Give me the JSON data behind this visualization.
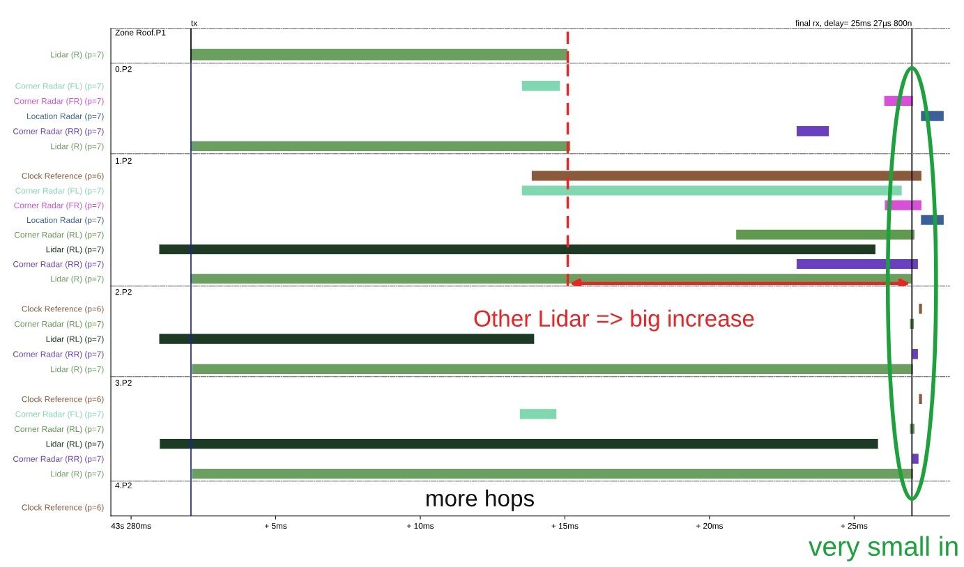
{
  "chart_data": [
    {
      "type": "bar",
      "orientation": "horizontal",
      "title": "Zone Roof.P1",
      "tick_labels": "y",
      "categories": [
        "Lidar (R) (p=7)"
      ],
      "base": [
        2.07
      ],
      "values": [
        13.0
      ],
      "colors": [
        "#6a9f60"
      ],
      "xlim": [
        -0.7,
        28.3
      ],
      "ref_lines": [
        {
          "axis": "x",
          "value": 2.07,
          "label": "tx",
          "color": "#000000",
          "line_style": "solid"
        },
        {
          "axis": "x",
          "value": 27.0,
          "label": "final rx, delay= 25ms 27µs 800n",
          "color": "#000000",
          "line_style": "solid"
        },
        {
          "axis": "x",
          "value": 15.1,
          "color": "#ee2222",
          "line_style": "dashed"
        }
      ]
    },
    {
      "type": "bar",
      "orientation": "horizontal",
      "title": "0.P2",
      "tick_labels": "y",
      "categories": [
        "Corner Radar (FL) (p=7)",
        "Corner Radar (FR) (p=7)",
        "Location Radar (p=7)",
        "Corner Radar (RR) (p=7)",
        "Lidar (R) (p=7)"
      ],
      "base": [
        13.53,
        26.06,
        27.33,
        23.03,
        2.07
      ],
      "values": [
        1.28,
        0.96,
        0.75,
        1.08,
        13.1
      ],
      "colors": [
        "#7fd8b0",
        "#d84fd8",
        "#3a5f9a",
        "#6a3fc0",
        "#6a9f60"
      ],
      "xlim": [
        -0.7,
        28.3
      ],
      "ref_lines": [
        {
          "axis": "x",
          "value": 2.07,
          "color": "#1a1acc",
          "line_style": "solid"
        },
        {
          "axis": "x",
          "value": 27.0,
          "color": "#000000",
          "line_style": "solid"
        },
        {
          "axis": "x",
          "value": 15.1,
          "color": "#ee2222",
          "line_style": "dashed"
        }
      ]
    },
    {
      "type": "bar",
      "orientation": "horizontal",
      "title": "1.P2",
      "tick_labels": "y",
      "categories": [
        "Clock Reference (p=6)",
        "Corner Radar (FL) (p=7)",
        "Corner Radar (FR) (p=7)",
        "Location Radar (p=7)",
        "Corner Radar (RL) (p=7)",
        "Lidar (RL) (p=7)",
        "Corner Radar (RR) (p=7)",
        "Lidar (R) (p=7)"
      ],
      "base": [
        13.87,
        13.53,
        26.08,
        27.33,
        20.94,
        0.99,
        23.03,
        2.07
      ],
      "values": [
        13.44,
        13.1,
        1.23,
        0.75,
        6.13,
        24.73,
        4.16,
        24.9
      ],
      "colors": [
        "#8b5a3c",
        "#7fd8b0",
        "#d84fd8",
        "#3a5f9a",
        "#5f9a4f",
        "#1c3a24",
        "#6a3fc0",
        "#6a9f60"
      ],
      "xlim": [
        -0.7,
        28.3
      ],
      "ref_lines": [
        {
          "axis": "x",
          "value": 2.07,
          "color": "#1a1acc",
          "line_style": "solid"
        },
        {
          "axis": "x",
          "value": 27.0,
          "color": "#000000",
          "line_style": "solid"
        },
        {
          "axis": "x",
          "value": 15.1,
          "color": "#ee2222",
          "line_style": "dashed"
        }
      ]
    },
    {
      "type": "bar",
      "orientation": "horizontal",
      "title": "2.P2",
      "tick_labels": "y",
      "categories": [
        "Clock Reference (p=6)",
        "Corner Radar (RL) (p=7)",
        "Lidar (RL) (p=7)",
        "Corner Radar (RR) (p=7)",
        "Lidar (R) (p=7)"
      ],
      "base": [
        27.26,
        26.95,
        0.99,
        27.04,
        2.12
      ],
      "values": [
        0.07,
        0.1,
        12.93,
        0.15,
        24.9
      ],
      "colors": [
        "#8b5a3c",
        "#5f9a4f",
        "#1c3a24",
        "#6a3fc0",
        "#6a9f60"
      ],
      "xlim": [
        -0.7,
        28.3
      ],
      "ref_lines": [
        {
          "axis": "x",
          "value": 2.07,
          "color": "#1a1acc",
          "line_style": "solid"
        },
        {
          "axis": "x",
          "value": 27.0,
          "color": "#000000",
          "line_style": "solid"
        }
      ],
      "annotations": [
        "Other Lidar => big increase"
      ]
    },
    {
      "type": "bar",
      "orientation": "horizontal",
      "title": "3.P2",
      "tick_labels": "y",
      "categories": [
        "Clock Reference (p=6)",
        "Corner Radar (FL) (p=7)",
        "Corner Radar (RL) (p=7)",
        "Lidar (RL) (p=7)",
        "Corner Radar (RR) (p=7)",
        "Lidar (R) (p=7)"
      ],
      "base": [
        27.26,
        13.46,
        26.95,
        1.01,
        27.04,
        2.12
      ],
      "values": [
        0.07,
        1.23,
        0.12,
        24.8,
        0.17,
        24.9
      ],
      "colors": [
        "#8b5a3c",
        "#7fd8b0",
        "#5f9a4f",
        "#1c3a24",
        "#6a3fc0",
        "#6a9f60"
      ],
      "xlim": [
        -0.7,
        28.3
      ],
      "ref_lines": [
        {
          "axis": "x",
          "value": 2.07,
          "color": "#1a1acc",
          "line_style": "solid"
        },
        {
          "axis": "x",
          "value": 27.0,
          "color": "#000000",
          "line_style": "solid"
        }
      ]
    },
    {
      "type": "bar",
      "orientation": "horizontal",
      "title": "4.P2",
      "categories": [
        "Clock Reference (p=6)"
      ],
      "base": [
        null
      ],
      "values": [
        null
      ],
      "colors": [
        "#8b5a3c"
      ],
      "xlim": [
        -0.7,
        28.3
      ],
      "xticks": [
        {
          "value": 0,
          "label": "43s 280ms"
        },
        {
          "value": 5,
          "label": "+ 5ms"
        },
        {
          "value": 10,
          "label": "+ 10ms"
        },
        {
          "value": 15,
          "label": "+ 15ms"
        },
        {
          "value": 20,
          "label": "+ 20ms"
        },
        {
          "value": 25,
          "label": "+ 25ms"
        }
      ],
      "ref_lines": [
        {
          "axis": "x",
          "value": 2.07,
          "color": "#1a1acc",
          "line_style": "solid"
        },
        {
          "axis": "x",
          "value": 27.0,
          "color": "#000000",
          "line_style": "solid"
        }
      ],
      "annotations": [
        "more hops",
        "very small in"
      ]
    }
  ]
}
